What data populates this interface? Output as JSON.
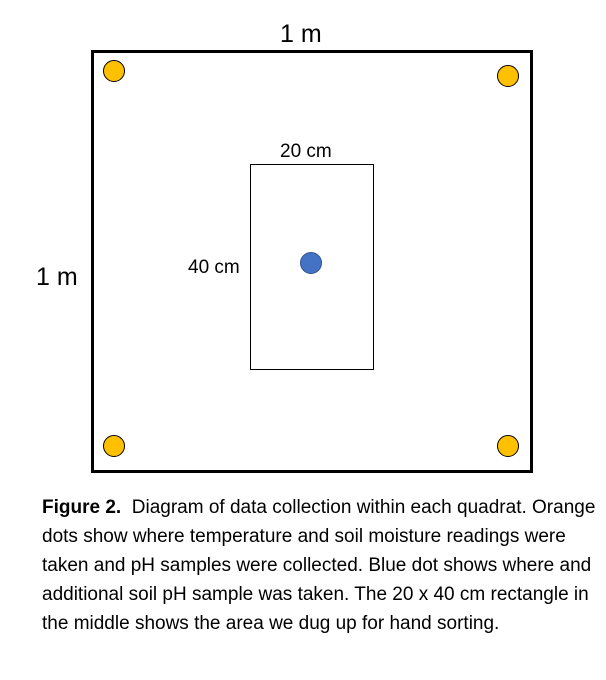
{
  "diagram": {
    "outer_width_label": "1 m",
    "outer_height_label": "1 m",
    "inner_width_label": "20 cm",
    "inner_height_label": "40 cm",
    "colors": {
      "orange_dot": "#ffc000",
      "blue_dot": "#4472c4",
      "outline": "#000000"
    }
  },
  "caption": {
    "figure_label": "Figure 2.",
    "text": "  Diagram of data collection within each quadrat. Orange dots show where temperature and soil moisture readings were taken and pH samples were collected. Blue dot shows where and additional soil pH sample was taken. The 20 x 40 cm rectangle in the middle shows the area we dug up for hand sorting."
  }
}
